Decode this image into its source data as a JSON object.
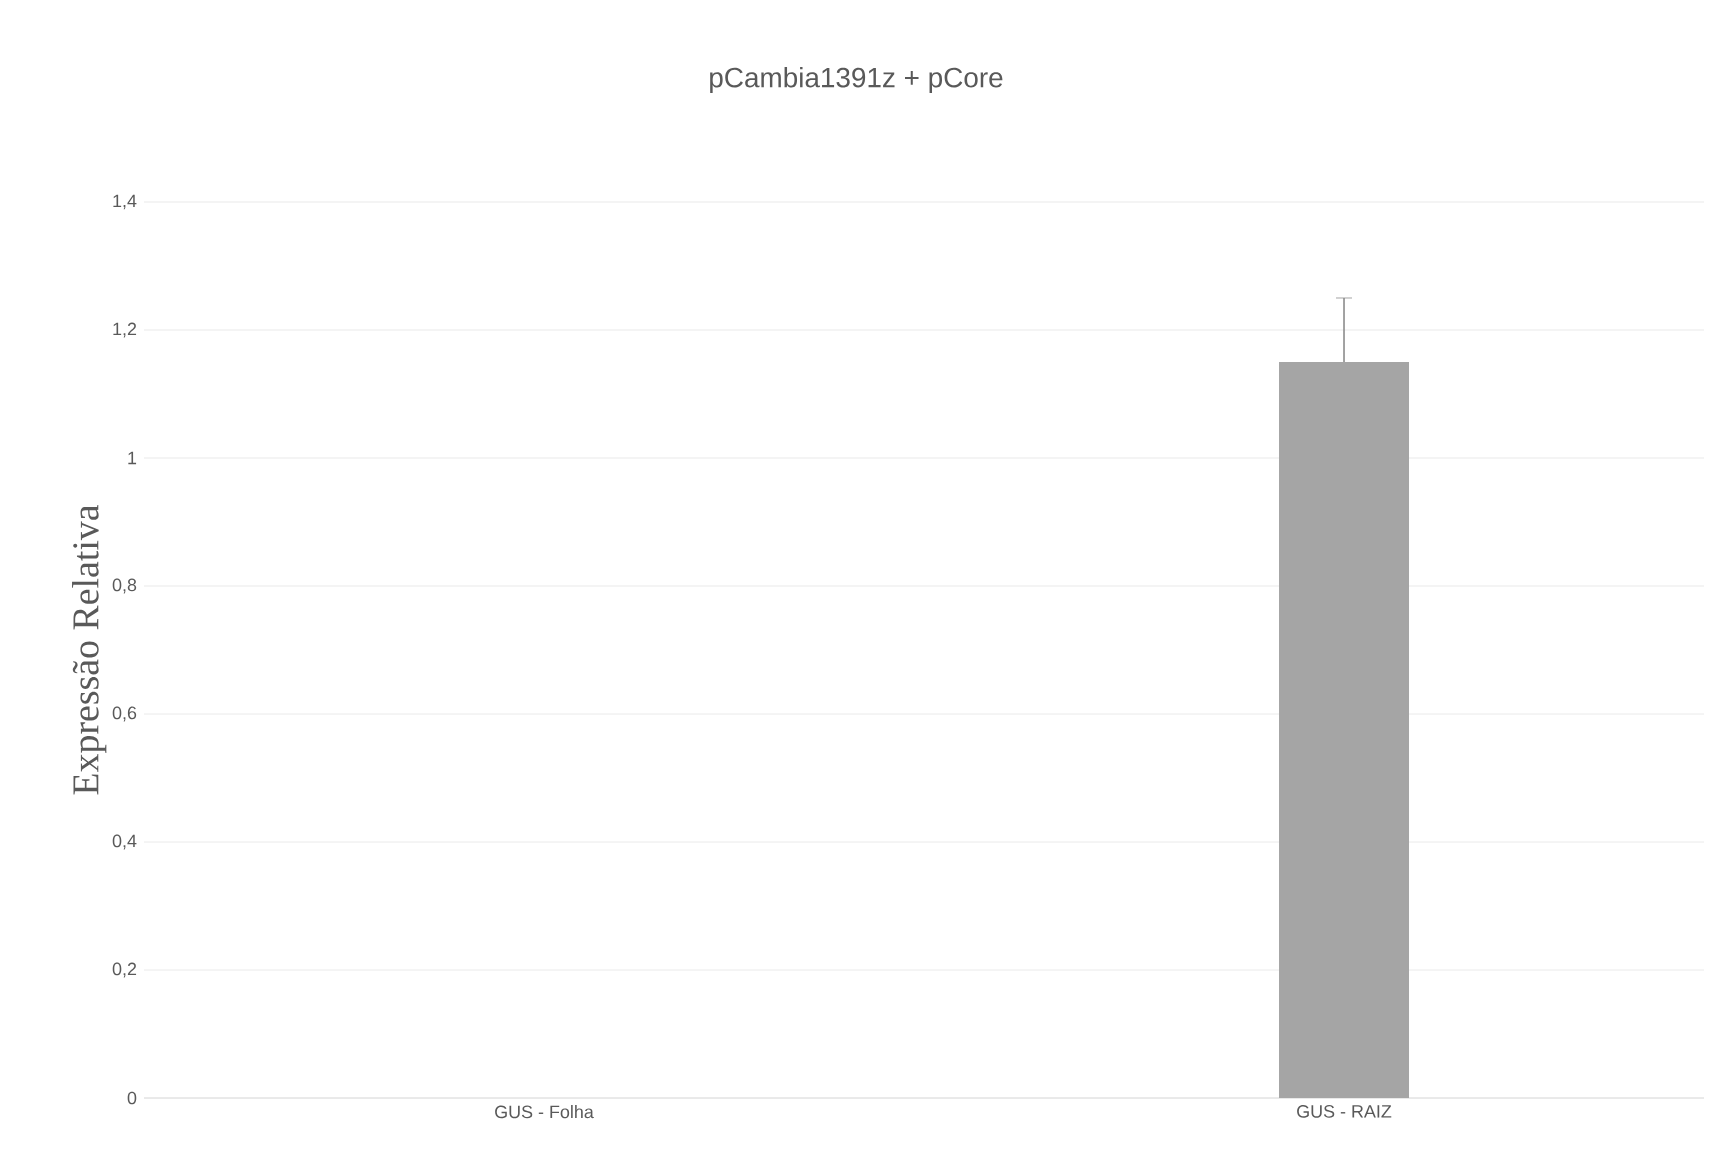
{
  "chart_data": {
    "type": "bar",
    "title": "pCambia1391z + pCore",
    "ylabel": "Expressão Relativa",
    "categories": [
      "GUS - Folha",
      "GUS - RAIZ"
    ],
    "values": [
      0,
      1.15
    ],
    "errors": [
      null,
      0.1
    ],
    "color": "#a5a5a5",
    "ylim": [
      0,
      1.4
    ],
    "yticks": [
      0,
      {
        "value": 0.2,
        "label": "0,2"
      },
      {
        "value": 0.4,
        "label": "0,4"
      },
      {
        "value": 0.6,
        "label": "0,6"
      },
      {
        "value": 0.8,
        "label": "0,8"
      },
      1,
      {
        "value": 1.2,
        "label": "1,2"
      },
      {
        "value": 1.4,
        "label": "1,4"
      }
    ],
    "grid": "y"
  }
}
